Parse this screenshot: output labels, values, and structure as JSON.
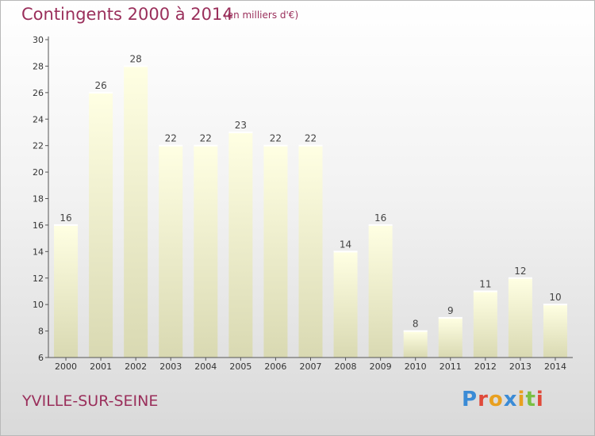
{
  "header": {
    "title": "Contingents 2000 à 2014",
    "subtitle": "(en milliers d'€)"
  },
  "footer": {
    "commune": "YVILLE-SUR-SEINE",
    "logo_text": "Proxiti",
    "logo_colors": [
      "#3a8bd6",
      "#e04a3a",
      "#e8a020",
      "#3a8bd6",
      "#e8a020",
      "#7ac043",
      "#e04a3a"
    ]
  },
  "chart_data": {
    "type": "bar",
    "title": "Contingents 2000 à 2014",
    "subtitle": "(en milliers d'€)",
    "categories": [
      "2000",
      "2001",
      "2002",
      "2003",
      "2004",
      "2005",
      "2006",
      "2007",
      "2008",
      "2009",
      "2010",
      "2011",
      "2012",
      "2013",
      "2014"
    ],
    "values": [
      16,
      26,
      28,
      22,
      22,
      23,
      22,
      22,
      14,
      16,
      8,
      9,
      11,
      12,
      10
    ],
    "ylim": [
      6,
      30
    ],
    "yticks": [
      6,
      8,
      10,
      12,
      14,
      16,
      18,
      20,
      22,
      24,
      26,
      28,
      30
    ],
    "grid": false,
    "data_labels": true,
    "bar_color": "#f2f2c4"
  }
}
